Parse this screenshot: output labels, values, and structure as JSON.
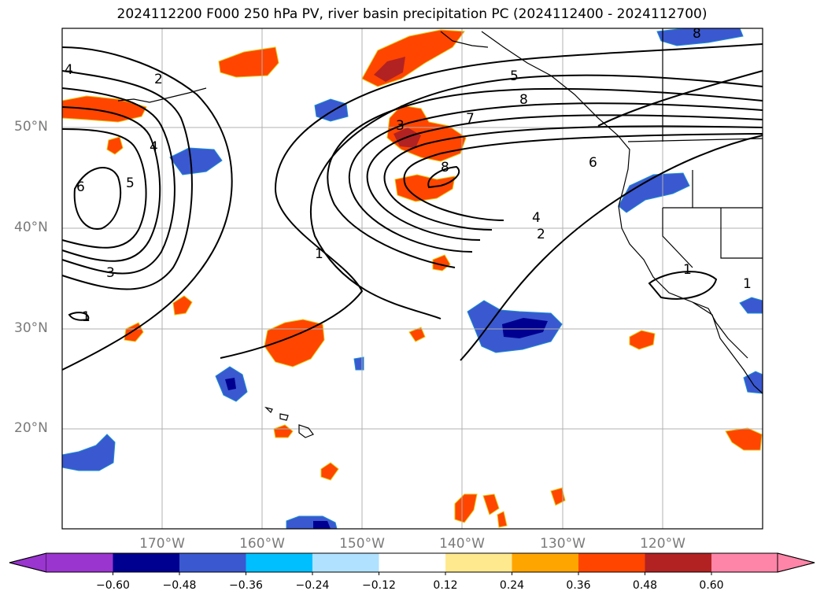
{
  "title": "2024112200 F000 250 hPa PV, river basin precipitation PC (2024112400 - 2024112700)",
  "lat_labels": [
    "50°N",
    "40°N",
    "30°N",
    "20°N"
  ],
  "lon_labels": [
    "170°W",
    "160°W",
    "150°W",
    "140°W",
    "130°W",
    "120°W"
  ],
  "colorbar": {
    "colors": [
      "#9a35d0",
      "#000090",
      "#3a58d0",
      "#00bfff",
      "#b0e2ff",
      "#ffffff",
      "#ffe98f",
      "#ffa500",
      "#ff4500",
      "#b22222",
      "#ff85a8"
    ],
    "ticks": [
      "−0.60",
      "−0.48",
      "−0.36",
      "−0.24",
      "−0.12",
      "0.12",
      "0.24",
      "0.36",
      "0.48",
      "0.60"
    ]
  },
  "contour_labels": [
    "1",
    "2",
    "3",
    "4",
    "5",
    "6",
    "7",
    "8"
  ],
  "colors": {
    "positive": "#ff4500",
    "positive_strong": "#b22222",
    "negative": "#3a58d0",
    "negative_strong": "#000090",
    "grid": "#b0b0b0",
    "contour": "#000000"
  }
}
